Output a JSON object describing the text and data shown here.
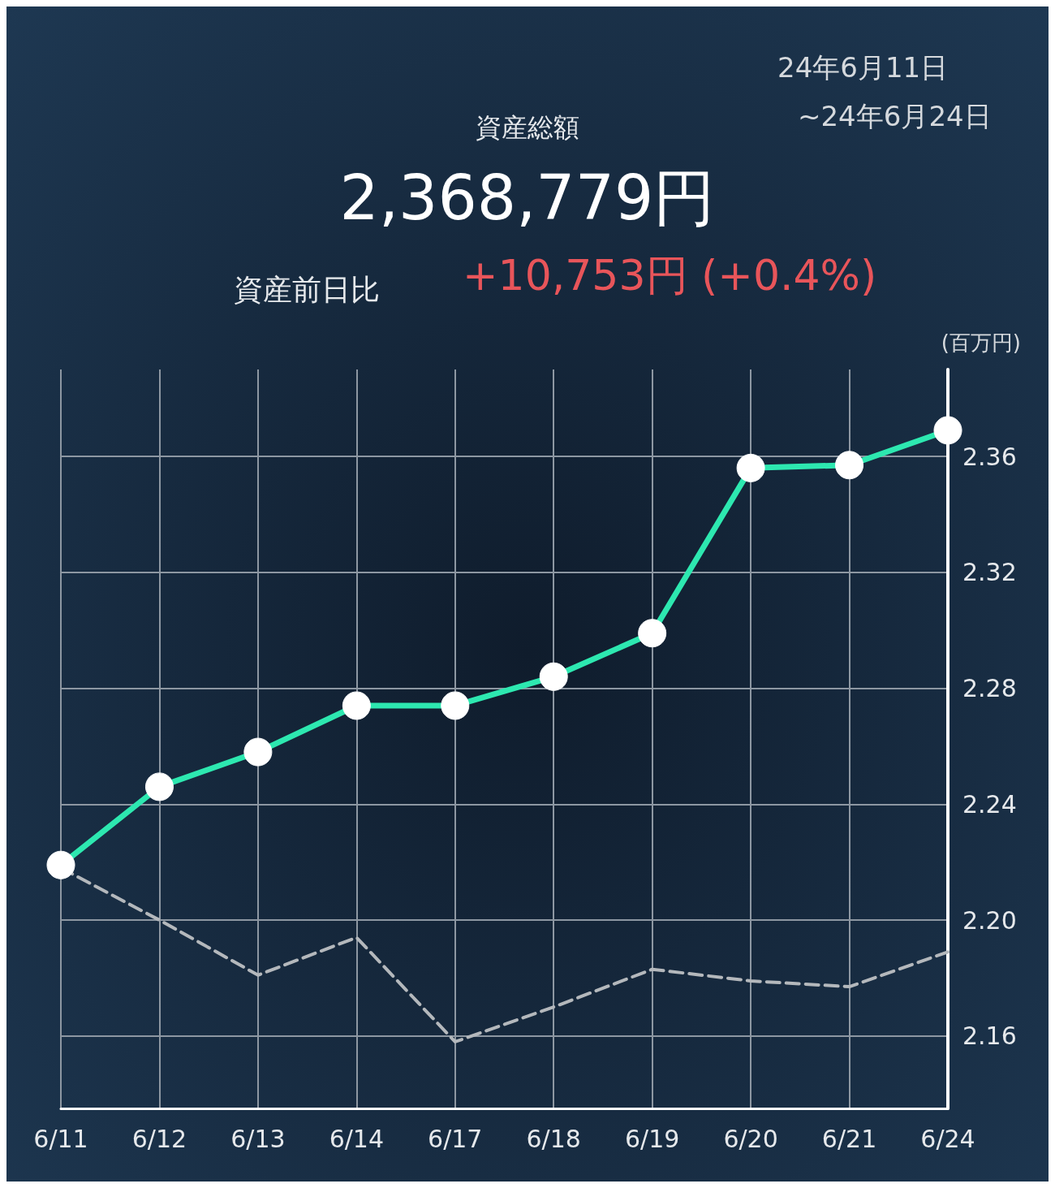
{
  "chart_data": {
    "type": "line",
    "title": "資産総額",
    "subtitle": "2,368,779円",
    "ylabel": "(百万円)",
    "annotations": [
      "資産前日比",
      "+10,753円 (+0.4%)",
      "24年6月11日",
      "~24年6月24日"
    ],
    "categories": [
      "6/11",
      "6/12",
      "6/13",
      "6/14",
      "6/17",
      "6/18",
      "6/19",
      "6/20",
      "6/21",
      "6/24"
    ],
    "series": [
      {
        "color": "#2de8b0",
        "values": [
          2.219,
          2.246,
          2.258,
          2.274,
          2.274,
          2.284,
          2.299,
          2.356,
          2.357,
          2.369
        ]
      },
      {
        "color": "#b4b8bc",
        "line_style": "dashed",
        "marker": "none",
        "values": [
          2.218,
          2.2,
          2.181,
          2.194,
          2.158,
          2.17,
          2.183,
          2.179,
          2.177,
          2.189
        ]
      }
    ],
    "ylim": [
      2.135,
      2.39
    ],
    "yticks": [
      2.16,
      {
        "value": 2.2,
        "label": "2.20"
      },
      2.24,
      2.28,
      2.32,
      2.36
    ],
    "grid": true,
    "marker": "circle",
    "line_style": "solid"
  }
}
